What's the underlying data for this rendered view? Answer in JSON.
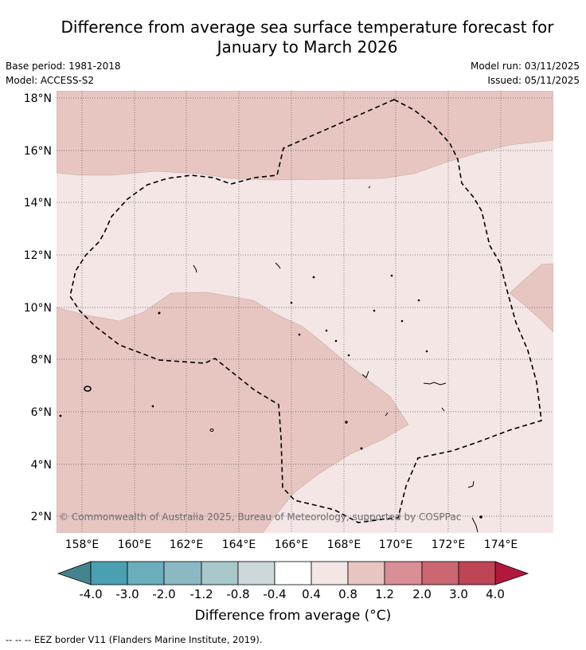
{
  "title_line1": "Difference from average sea surface temperature forecast for",
  "title_line2": "January to March 2026",
  "base_period": "Base period: 1981-2018",
  "model": "Model: ACCESS-S2",
  "model_run": "Model run: 03/11/2025",
  "issued": "Issued: 05/11/2025",
  "copyright": "© Commonwealth of Australia 2025, Bureau of Meteorology, supported by COSPPac",
  "lon_labels": [
    "158°E",
    "160°E",
    "162°E",
    "164°E",
    "166°E",
    "168°E",
    "170°E",
    "172°E",
    "174°E"
  ],
  "lat_labels": [
    "18°N",
    "16°N",
    "14°N",
    "12°N",
    "10°N",
    "8°N",
    "6°N",
    "4°N",
    "2°N"
  ],
  "colorbar": {
    "title": "Difference from average (°C)",
    "tick_labels": [
      "-4.0",
      "-3.0",
      "-2.0",
      "-1.2",
      "-0.8",
      "-0.4",
      "0.4",
      "0.8",
      "1.2",
      "2.0",
      "3.0",
      "4.0"
    ],
    "colors": [
      "#4a9fb1",
      "#6aaebc",
      "#8ab9c3",
      "#a8c7ca",
      "#cdd8da",
      "#ffffff",
      "#f3e6e5",
      "#e7c6c2",
      "#d98d94",
      "#cb6771",
      "#bd4556"
    ],
    "under_color": "#44848e",
    "over_color": "#b2183c"
  },
  "map_colors": {
    "band_0_4_to_0_8": "#f3e6e5",
    "band_0_8_to_1_2": "#e7c6c2"
  },
  "footer": "--  --  -- EEZ border V11 (Flanders Marine Institute, 2019)."
}
